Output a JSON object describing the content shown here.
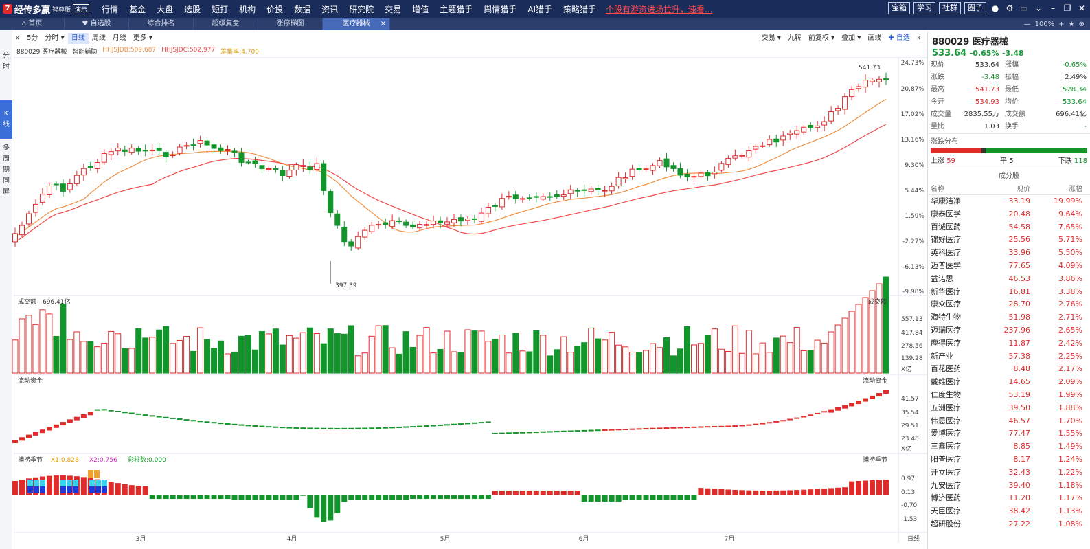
{
  "app": {
    "logo": "经传多赢",
    "edition": "智尊版",
    "demo": "演示",
    "promo": "个股有游资进场拉升，速看...",
    "menu": [
      "行情",
      "基金",
      "大盘",
      "选股",
      "短打",
      "机构",
      "价投",
      "数据",
      "资讯",
      "研究院",
      "交易",
      "增值",
      "主题猎手",
      "舆情猎手",
      "AI猎手",
      "策略猎手"
    ],
    "right_buttons": [
      "宝箱",
      "学习",
      "社群",
      "圈子"
    ]
  },
  "tabs": [
    "首页",
    "自选股",
    "综合排名",
    "超级复盘",
    "涨停梯图",
    "医疗器械"
  ],
  "zoom": "100%",
  "leftnav": {
    "items": [
      "分",
      "时",
      "K",
      "线",
      "多",
      "周",
      "期",
      "同",
      "屏"
    ]
  },
  "toolbar": {
    "left": [
      "5分",
      "分时 ▾",
      "日线",
      "周线",
      "月线",
      "更多 ▾"
    ],
    "right": [
      "交易 ▾",
      "九转",
      "前复权 ▾",
      "叠加 ▾",
      "画线",
      "✚ 自选"
    ]
  },
  "chart_header": {
    "code": "880029 医疗器械",
    "assist": "智能辅助",
    "l1": "HHJSJDB:509.687",
    "l2": "HHJSJDC:502.977",
    "l3": "筹集率:4.700"
  },
  "colors": {
    "up": "#e02b2b",
    "down": "#12962b",
    "ma1": "#ef8f40",
    "ma2": "#f04a4a"
  },
  "panels": {
    "vol": {
      "label": "成交额",
      "value": "696.41亿",
      "unit": "X亿"
    },
    "flow": {
      "label": "流动资金",
      "unit": "X亿"
    },
    "kdj": {
      "label": "捕捞季节",
      "x1": "X1:0.828",
      "x2": "X2:0.756",
      "cz": "彩柱数:0.000"
    }
  },
  "chart_data": {
    "type": "candlestick",
    "title": "880029 医疗器械",
    "yaxis": [
      "24.73%",
      "20.87%",
      "17.02%",
      "13.16%",
      "9.30%",
      "5.44%",
      "1.59%",
      "-2.27%",
      "-6.13%",
      "-9.98%"
    ],
    "hi_label": "541.73",
    "lo_label": "397.39",
    "xaxis": [
      "3月",
      "4月",
      "5月",
      "6月",
      "7月"
    ],
    "x_unit": "日线",
    "vol_axis": [
      "557.13",
      "417.84",
      "278.56",
      "139.28"
    ],
    "flow_axis": [
      "41.57",
      "35.54",
      "29.51",
      "23.48"
    ],
    "kdj_axis": [
      "0.97",
      "0.13",
      "-0.70",
      "-1.53"
    ]
  },
  "stock": {
    "title": "880029 医疗器械",
    "price": "533.64",
    "chg": "-0.65%",
    "amt": "-3.48",
    "quote": [
      [
        "现价",
        "533.64",
        "涨幅",
        "-0.65%"
      ],
      [
        "涨跌",
        "-3.48",
        "振幅",
        "2.49%"
      ],
      [
        "最高",
        "541.73",
        "最低",
        "528.34"
      ],
      [
        "今开",
        "534.93",
        "均价",
        "533.64"
      ],
      [
        "成交量",
        "2835.55万",
        "成交额",
        "696.41亿"
      ],
      [
        "量比",
        "1.03",
        "换手",
        "-"
      ]
    ],
    "dist_label": "涨跌分布",
    "up_label": "上涨",
    "up": "59",
    "flat_label": "平",
    "flat": "5",
    "down_label": "下跌",
    "down": "118",
    "comp_title": "成分股",
    "col_name": "名称",
    "col_price": "现价",
    "col_chg": "涨幅",
    "components": [
      [
        "华康洁净",
        "33.19",
        "19.99%"
      ],
      [
        "康泰医学",
        "20.48",
        "9.64%"
      ],
      [
        "百诚医药",
        "54.58",
        "7.65%"
      ],
      [
        "锦好医疗",
        "25.56",
        "5.71%"
      ],
      [
        "英科医疗",
        "33.96",
        "5.50%"
      ],
      [
        "迈普医学",
        "77.65",
        "4.09%"
      ],
      [
        "益诺思",
        "46.53",
        "3.86%"
      ],
      [
        "新华医疗",
        "16.81",
        "3.38%"
      ],
      [
        "康众医疗",
        "28.70",
        "2.76%"
      ],
      [
        "海特生物",
        "51.98",
        "2.71%"
      ],
      [
        "迈瑞医疗",
        "237.96",
        "2.65%"
      ],
      [
        "鹿得医疗",
        "11.87",
        "2.42%"
      ],
      [
        "新产业",
        "57.38",
        "2.25%"
      ],
      [
        "百花医药",
        "8.48",
        "2.17%"
      ],
      [
        "戴维医疗",
        "14.65",
        "2.09%"
      ],
      [
        "仁度生物",
        "53.19",
        "1.99%"
      ],
      [
        "五洲医疗",
        "39.50",
        "1.88%"
      ],
      [
        "伟思医疗",
        "46.57",
        "1.70%"
      ],
      [
        "爱博医疗",
        "77.47",
        "1.55%"
      ],
      [
        "三鑫医疗",
        "8.85",
        "1.49%"
      ],
      [
        "阳普医疗",
        "8.17",
        "1.24%"
      ],
      [
        "开立医疗",
        "32.43",
        "1.22%"
      ],
      [
        "九安医疗",
        "39.40",
        "1.18%"
      ],
      [
        "博济医药",
        "11.20",
        "1.17%"
      ],
      [
        "天臣医疗",
        "38.42",
        "1.13%"
      ],
      [
        "超研股份",
        "27.22",
        "1.08%"
      ]
    ]
  }
}
